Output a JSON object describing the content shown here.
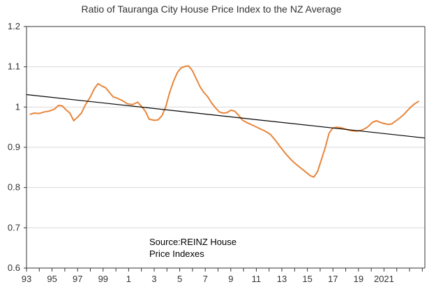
{
  "chart_data": {
    "type": "line",
    "title": "Ratio of Tauranga City House Price Index to the NZ Average",
    "xlabel": "",
    "ylabel": "",
    "x_range": [
      1993,
      2024.2
    ],
    "ylim": [
      0.6,
      1.2
    ],
    "y_ticks": [
      "0.6",
      "0.7",
      "0.8",
      "0.9",
      "1",
      "1.1",
      "1.2"
    ],
    "y_tick_values": [
      0.6,
      0.7,
      0.8,
      0.9,
      1.0,
      1.1,
      1.2
    ],
    "x_ticks": [
      "93",
      "95",
      "97",
      "99",
      "1",
      "3",
      "5",
      "7",
      "9",
      "11",
      "13",
      "15",
      "17",
      "19",
      "2021"
    ],
    "x_tick_values": [
      1993,
      1995,
      1997,
      1999,
      2001,
      2003,
      2005,
      2007,
      2009,
      2011,
      2013,
      2015,
      2017,
      2019,
      2021
    ],
    "grid": "horizontal",
    "annotation_lines": [
      "Source:REINZ House",
      "Price Indexes"
    ],
    "colors": {
      "series": "#E8853A",
      "trend": "#000000",
      "grid": "#D9D9D9",
      "axis": "#333333"
    },
    "series": [
      {
        "style": "line",
        "x": [
          1993.3,
          1993.6,
          1994.0,
          1994.4,
          1994.8,
          1995.2,
          1995.5,
          1995.8,
          1996.1,
          1996.4,
          1996.7,
          1997.0,
          1997.3,
          1997.6,
          1998.0,
          1998.3,
          1998.6,
          1998.9,
          1999.2,
          1999.5,
          1999.8,
          2000.1,
          2000.5,
          2000.9,
          2001.3,
          2001.7,
          2002.0,
          2002.3,
          2002.6,
          2003.0,
          2003.3,
          2003.6,
          2003.9,
          2004.2,
          2004.5,
          2004.8,
          2005.1,
          2005.4,
          2005.7,
          2006.0,
          2006.3,
          2006.6,
          2006.9,
          2007.2,
          2007.5,
          2007.8,
          2008.1,
          2008.4,
          2008.7,
          2009.0,
          2009.3,
          2009.6,
          2009.9,
          2010.2,
          2010.5,
          2010.9,
          2011.3,
          2011.7,
          2012.1,
          2012.5,
          2012.9,
          2013.3,
          2013.7,
          2014.1,
          2014.5,
          2014.9,
          2015.2,
          2015.5,
          2015.8,
          2016.1,
          2016.4,
          2016.7,
          2017.0,
          2017.3,
          2017.7,
          2018.1,
          2018.5,
          2018.9,
          2019.3,
          2019.7,
          2020.1,
          2020.4,
          2020.7,
          2021.0,
          2021.3,
          2021.6,
          2021.9,
          2022.2,
          2022.5,
          2022.8,
          2023.1,
          2023.4,
          2023.7
        ],
        "y": [
          0.982,
          0.985,
          0.984,
          0.988,
          0.99,
          0.995,
          1.004,
          1.003,
          0.993,
          0.985,
          0.966,
          0.975,
          0.985,
          1.005,
          1.025,
          1.045,
          1.058,
          1.052,
          1.048,
          1.036,
          1.025,
          1.022,
          1.016,
          1.008,
          1.006,
          1.012,
          1.002,
          0.99,
          0.97,
          0.967,
          0.968,
          0.978,
          1.0,
          1.035,
          1.063,
          1.085,
          1.097,
          1.101,
          1.102,
          1.09,
          1.07,
          1.05,
          1.036,
          1.025,
          1.01,
          0.998,
          0.988,
          0.985,
          0.986,
          0.992,
          0.99,
          0.98,
          0.968,
          0.962,
          0.958,
          0.952,
          0.946,
          0.94,
          0.932,
          0.917,
          0.9,
          0.884,
          0.87,
          0.858,
          0.848,
          0.838,
          0.83,
          0.826,
          0.84,
          0.87,
          0.9,
          0.935,
          0.948,
          0.95,
          0.948,
          0.944,
          0.941,
          0.94,
          0.943,
          0.95,
          0.962,
          0.966,
          0.962,
          0.959,
          0.957,
          0.958,
          0.965,
          0.972,
          0.98,
          0.99,
          1.0,
          1.008,
          1.014
        ]
      },
      {
        "style": "trend",
        "x": [
          1993.0,
          2024.2
        ],
        "y": [
          1.031,
          0.923
        ]
      }
    ]
  }
}
